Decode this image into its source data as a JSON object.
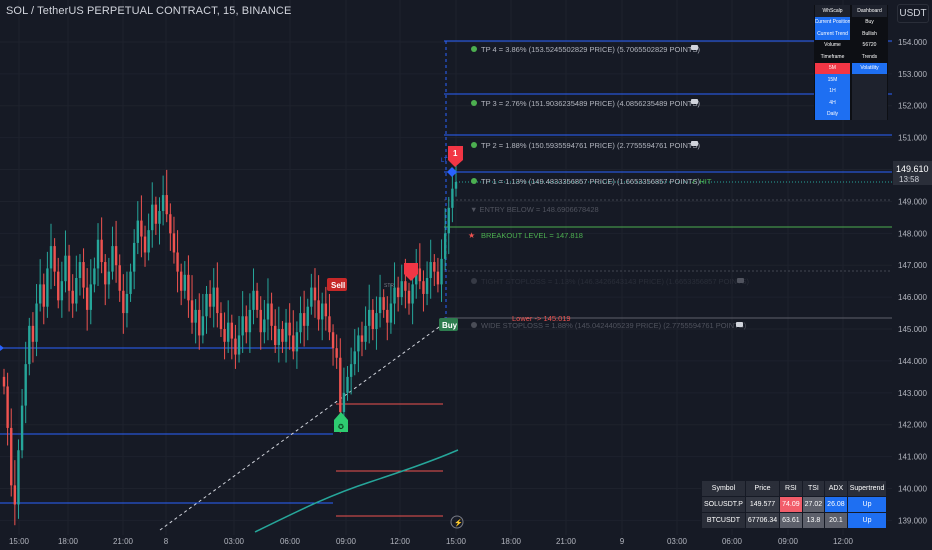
{
  "header": {
    "title": "SOL / TetherUS PERPETUAL CONTRACT, 15, BINANCE"
  },
  "currency_button": "USDT",
  "price_badge": {
    "price": "149.610",
    "countdown": "13:58"
  },
  "colors": {
    "background": "#161a25",
    "up": "#26a69a",
    "down": "#ef5350",
    "blue_line": "#2962ff",
    "green_label": "#4caf50"
  },
  "chart_data": {
    "type": "candlestick",
    "title": "SOL / TetherUS PERPETUAL CONTRACT, 15, BINANCE",
    "x_ticks": [
      "15:00",
      "18:00",
      "21:00",
      "8",
      "03:00",
      "06:00",
      "09:00",
      "12:00",
      "15:00",
      "18:00",
      "21:00",
      "9",
      "03:00",
      "06:00",
      "09:00",
      "12:00"
    ],
    "y_ticks": [
      "154.000",
      "153.000",
      "152.000",
      "151.000",
      "150.000",
      "149.000",
      "148.000",
      "147.000",
      "146.000",
      "145.000",
      "144.000",
      "143.000",
      "142.000",
      "141.000",
      "140.000",
      "139.000"
    ],
    "ylim": [
      138.7,
      154.5
    ],
    "last_price": 149.61,
    "closes": [
      143.2,
      141.9,
      140.1,
      139.5,
      141.2,
      142.6,
      143.9,
      145.1,
      144.6,
      145.8,
      146.4,
      145.7,
      146.9,
      147.6,
      146.8,
      145.9,
      146.5,
      147.3,
      146.2,
      145.8,
      146.6,
      147.1,
      146.3,
      145.6,
      146.4,
      146.9,
      147.8,
      147.1,
      146.4,
      146.8,
      147.6,
      147.0,
      146.2,
      145.5,
      146.1,
      146.8,
      147.7,
      148.4,
      147.9,
      147.4,
      148.1,
      148.9,
      148.3,
      148.7,
      149.2,
      148.6,
      148.0,
      147.4,
      146.8,
      146.2,
      146.7,
      145.9,
      145.2,
      145.6,
      144.8,
      145.4,
      146.1,
      145.7,
      146.3,
      145.5,
      145.0,
      144.6,
      145.2,
      144.7,
      144.2,
      144.8,
      145.4,
      144.9,
      145.6,
      146.2,
      145.6,
      144.9,
      145.3,
      145.8,
      145.1,
      144.5,
      145.0,
      144.6,
      145.2,
      144.8,
      144.3,
      144.9,
      145.5,
      145.1,
      145.7,
      146.3,
      145.9,
      145.3,
      145.8,
      145.4,
      144.9,
      144.4,
      144.1,
      142.4,
      143.0,
      143.5,
      143.9,
      144.3,
      144.8,
      144.6,
      145.1,
      145.6,
      145.0,
      145.5,
      146.0,
      145.6,
      145.2,
      145.8,
      146.3,
      146.0,
      146.5,
      146.2,
      145.8,
      146.4,
      146.9,
      146.5,
      146.1,
      146.6,
      147.1,
      146.8,
      146.4,
      147.2,
      148.0,
      148.8,
      149.4,
      149.61
    ]
  },
  "levels": {
    "tp4": "TP 4 = 3.86% (153.5245502829 PRICE) (5.7065502829 POINTS)",
    "tp3": "TP 3 = 2.76% (151.9036235489 PRICE) (4.0856235489 POINTS)",
    "tp2": "TP 2 = 1.88% (150.5935594761 PRICE) (2.7755594761 POINTS)",
    "tp1": "TP 1 = 1.13% (149.4833356857 PRICE) (1.6653356857 POINTS)",
    "tp1_hit": "✓ HIT",
    "entry_below": "▼ ENTRY BELOW = 148.6906678428",
    "breakout": "BREAKOUT LEVEL = 147.818",
    "tight_stoploss": "TIGHT STOPLOSS = 1.13% (146.3426643143 PRICE) (1.6653356857 POINTS)",
    "lower": "Lower -> 145.019",
    "wide_stoploss": "WIDE STOPLOSS = 1.88% (145.0424405239 PRICE) (2.7755594761 POINTS)"
  },
  "markers": {
    "sell": "Sell",
    "buy": "Buy",
    "one": "1",
    "lt": "LT",
    "str": "STR"
  },
  "dashboard": {
    "rows": [
      [
        "WhScalp",
        "Dashboard"
      ],
      [
        "Current Position",
        "Buy"
      ],
      [
        "Current Trend",
        "Bullish"
      ],
      [
        "Volume",
        "56720"
      ],
      [
        "Timeframe",
        "Trends"
      ],
      [
        "5M",
        "Volatility"
      ],
      [
        "15M",
        ""
      ],
      [
        "1H",
        ""
      ],
      [
        "4H",
        ""
      ],
      [
        "Daily",
        ""
      ]
    ]
  },
  "stats_table": {
    "headers": [
      "Symbol",
      "Price",
      "RSI",
      "TSI",
      "ADX",
      "Supertrend"
    ],
    "rows": [
      [
        "SOLUSDT.P",
        "149.577",
        "74.09",
        "27.02",
        "26.08",
        "Up"
      ],
      [
        "BTCUSDT",
        "67706.34",
        "63.61",
        "13.8",
        "20.1",
        "Up"
      ]
    ]
  }
}
